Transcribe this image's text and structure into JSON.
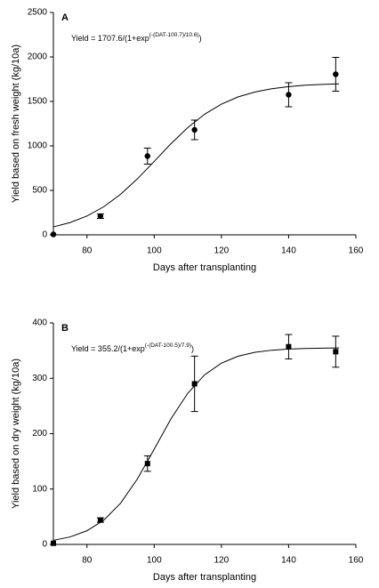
{
  "chart_data": [
    {
      "type": "scatter",
      "label": "A",
      "annotation": {
        "base": "Yield = 1707.6/(1+exp",
        "exponent": "(-(DAT-100.7)/10.6)",
        "tail": ")"
      },
      "xlabel": "Days after transplanting",
      "ylabel": "Yield based on fresh weight (kg/10a)",
      "xlim": [
        70,
        160
      ],
      "xticks": [
        80,
        100,
        120,
        140,
        160
      ],
      "ylim": [
        0,
        2500
      ],
      "yticks": [
        0,
        500,
        1000,
        1500,
        2000,
        2500
      ],
      "marker": "circle",
      "color": "#000000",
      "x": [
        70,
        84,
        98,
        112,
        140,
        154
      ],
      "values": [
        5,
        210,
        885,
        1180,
        1575,
        1805
      ],
      "errors": [
        0,
        25,
        90,
        110,
        135,
        190
      ],
      "fit": {
        "x": [
          70,
          75,
          80,
          85,
          90,
          95,
          100,
          105,
          110,
          115,
          120,
          125,
          130,
          135,
          140,
          145,
          150,
          155
        ],
        "values": [
          89.4,
          138.8,
          212.1,
          316.2,
          456.1,
          629.6,
          825.7,
          1025,
          1206,
          1355.8,
          1469.7,
          1551,
          1606.4,
          1643,
          1666.8,
          1681.9,
          1691.4,
          1697.5
        ]
      }
    },
    {
      "type": "scatter",
      "label": "B",
      "annotation": {
        "base": "Yield = 355.2/(1+exp",
        "exponent": "(-(DAT-100.5)/7.9)",
        "tail": ")"
      },
      "xlabel": "Days after transplanting",
      "ylabel": "Yield based on dry weight (kg/10a)",
      "xlim": [
        70,
        160
      ],
      "xticks": [
        80,
        100,
        120,
        140,
        160
      ],
      "ylim": [
        0,
        400
      ],
      "yticks": [
        0,
        100,
        200,
        300,
        400
      ],
      "marker": "square",
      "color": "#000000",
      "x": [
        70,
        84,
        98,
        112,
        140,
        154
      ],
      "values": [
        2,
        44,
        146,
        290,
        357,
        348
      ],
      "errors": [
        0,
        4,
        14,
        50,
        22,
        28
      ],
      "fit": {
        "x": [
          70,
          75,
          80,
          85,
          90,
          95,
          100,
          105,
          110,
          115,
          120,
          125,
          130,
          135,
          140,
          145,
          150,
          155
        ],
        "values": [
          7.32,
          13.56,
          24.67,
          43.8,
          74.4,
          118.2,
          172.0,
          226.9,
          273.1,
          306.3,
          327.4,
          339.9,
          346.9,
          350.7,
          352.8,
          353.9,
          354.5,
          354.8
        ]
      }
    }
  ]
}
